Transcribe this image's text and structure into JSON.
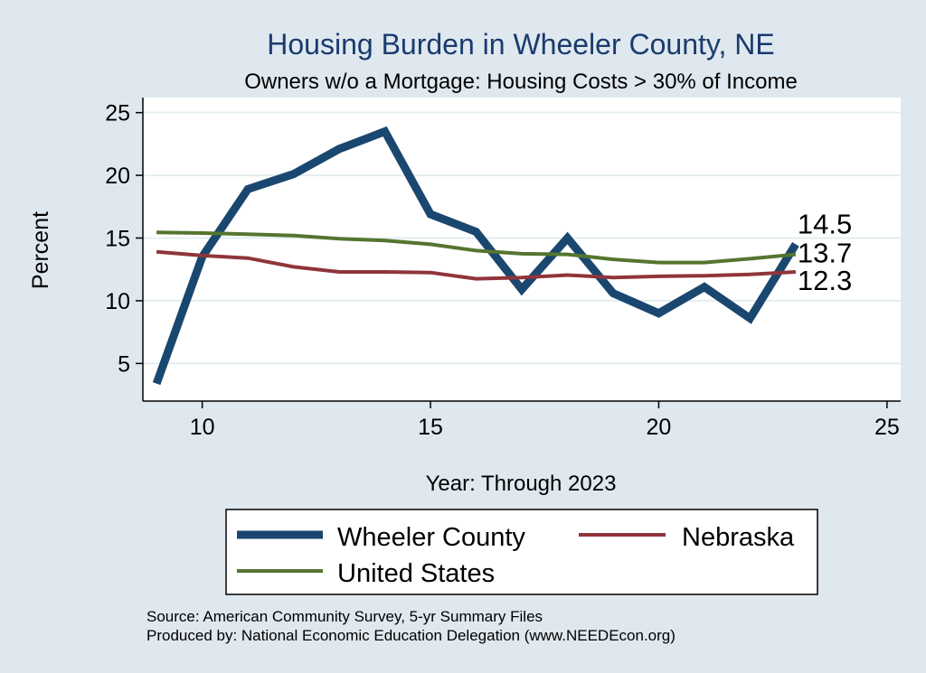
{
  "chart_data": {
    "type": "line",
    "title": "Housing Burden in Wheeler County, NE",
    "subtitle": "Owners w/o a Mortgage: Housing Costs > 30% of Income",
    "xlabel": "Year: Through 2023",
    "ylabel": "Percent",
    "xlim": [
      8.7,
      25.3
    ],
    "ylim": [
      2.0,
      26.2
    ],
    "x_ticks": [
      10,
      15,
      20,
      25
    ],
    "y_ticks": [
      5,
      10,
      15,
      20,
      25
    ],
    "grid": true,
    "x": [
      9,
      10,
      11,
      12,
      13,
      14,
      15,
      16,
      17,
      18,
      19,
      20,
      21,
      22,
      23
    ],
    "series": [
      {
        "name": "Wheeler County",
        "color": "#1a476f",
        "width": 9,
        "values": [
          3.4,
          13.5,
          18.9,
          20.1,
          22.1,
          23.5,
          16.9,
          15.5,
          10.9,
          15.0,
          10.6,
          9.0,
          11.1,
          8.6,
          14.5
        ],
        "end_label": "14.5"
      },
      {
        "name": "Nebraska",
        "color": "#90353b",
        "width": 4,
        "values": [
          13.9,
          13.6,
          13.4,
          12.7,
          12.3,
          12.3,
          12.25,
          11.75,
          11.85,
          12.05,
          11.85,
          11.95,
          12.0,
          12.1,
          12.3
        ],
        "end_label": "12.3"
      },
      {
        "name": "United States",
        "color": "#55752f",
        "width": 4,
        "values": [
          15.45,
          15.4,
          15.3,
          15.2,
          14.95,
          14.8,
          14.5,
          14.0,
          13.75,
          13.7,
          13.3,
          13.05,
          13.05,
          13.35,
          13.7
        ],
        "end_label": "13.7"
      }
    ],
    "legend": {
      "placement": "bottom",
      "entries": [
        "Wheeler County",
        "Nebraska",
        "United States"
      ]
    }
  },
  "footer": {
    "source": "Source: American Community Survey, 5-yr Summary Files",
    "produced_by": "Produced by: National Economic Education Delegation (www.NEEDEcon.org)"
  },
  "colors": {
    "background": "#dfe8ef",
    "plot_background": "#ffffff",
    "grid": "#e4edf0",
    "title": "#1a3b6e"
  }
}
